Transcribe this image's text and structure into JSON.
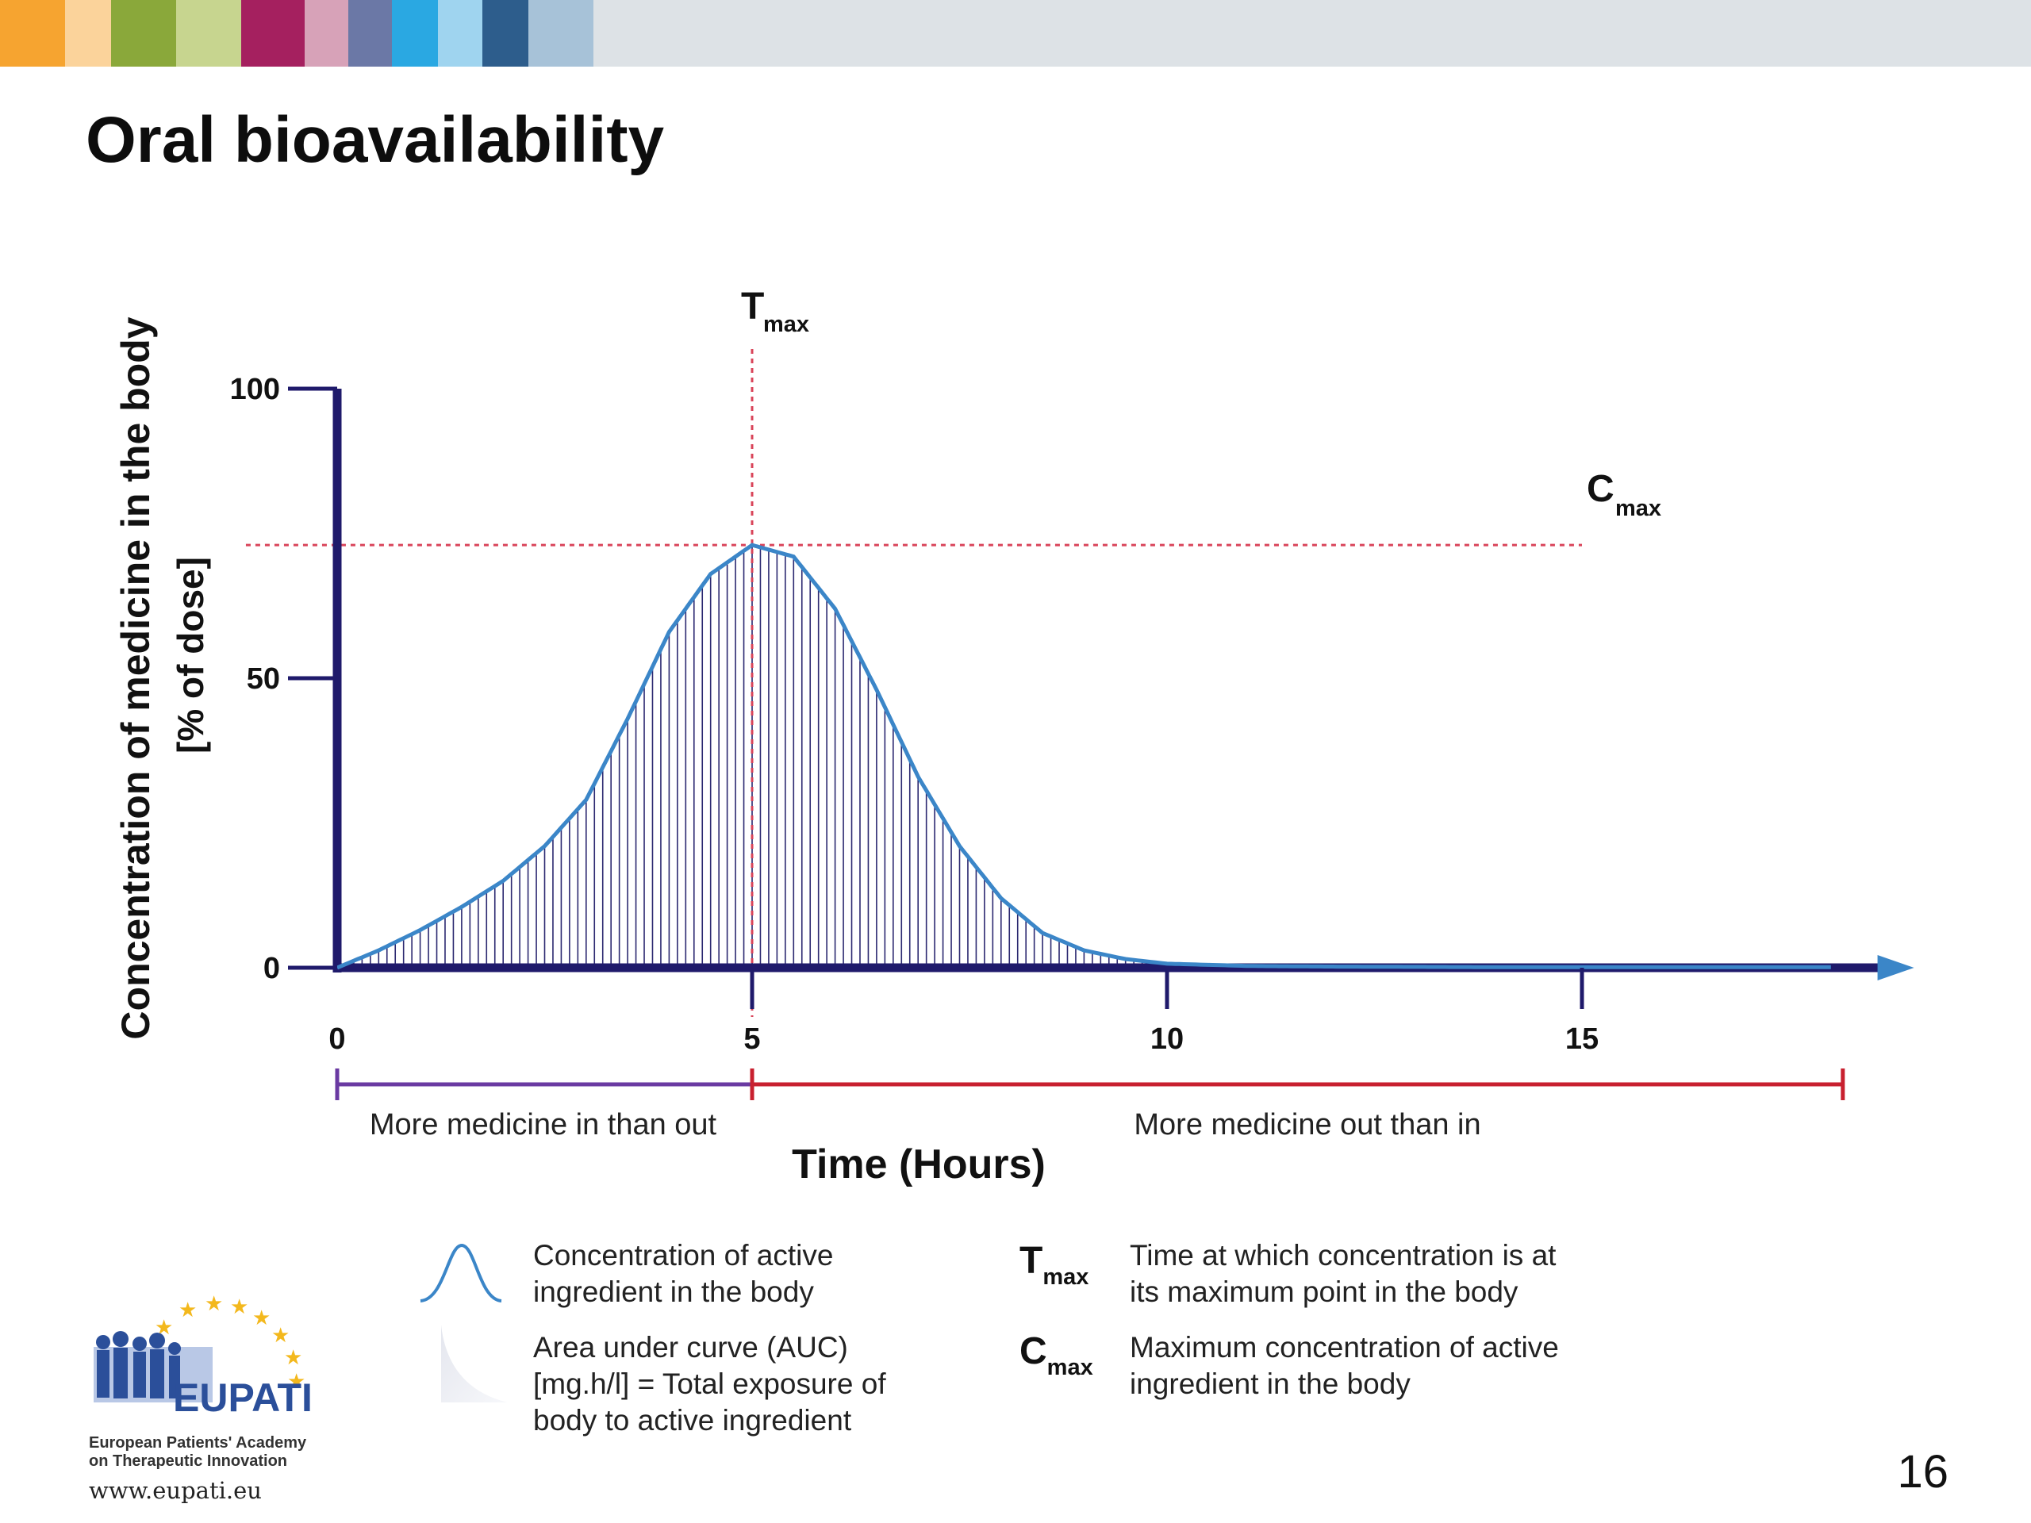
{
  "page_title": "Oral bioavailability",
  "page_number": "16",
  "brand_colors": [
    "#f6a430",
    "#fbd39b",
    "#8aa83a",
    "#c7d58f",
    "#a5205f",
    "#d7a2b8",
    "#6b78a6",
    "#2aa8e2",
    "#9fd4ef",
    "#2d5d8c",
    "#a7c2d8",
    "#dde2e6"
  ],
  "chart_data": {
    "type": "area",
    "title": "",
    "xlabel": "Time (Hours)",
    "ylabel_line1": "Concentration of medicine in the body",
    "ylabel_line2": "[% of dose]",
    "xlim": [
      0,
      18
    ],
    "ylim": [
      0,
      100
    ],
    "x_ticks": [
      0,
      5,
      10,
      15
    ],
    "x_tick_labels": [
      "0",
      "5",
      "10",
      "15"
    ],
    "y_ticks": [
      0,
      50,
      100
    ],
    "y_tick_labels": [
      "0",
      "50",
      "100"
    ],
    "series": [
      {
        "x": [
          0,
          0.5,
          1,
          1.5,
          2,
          2.5,
          3,
          3.5,
          4,
          4.5,
          5,
          5.5,
          6,
          6.5,
          7,
          7.5,
          8,
          8.5,
          9,
          9.5,
          10,
          11,
          12,
          14,
          16,
          18
        ],
        "y": [
          0,
          3,
          6.5,
          10.5,
          15,
          21,
          29,
          43,
          58,
          68,
          73,
          71,
          62,
          48,
          33,
          21,
          12,
          6,
          3,
          1.5,
          0.7,
          0.3,
          0.2,
          0.1,
          0.1,
          0.1
        ],
        "color": "#3b86c8"
      }
    ],
    "tmax": 5,
    "cmax": 73,
    "tmax_label": "T",
    "tmax_sub": "max",
    "cmax_label": "C",
    "cmax_sub": "max",
    "phase_in": {
      "label": "More medicine in than out",
      "from": 0,
      "to": 5,
      "color": "#6a3aa2"
    },
    "phase_out": {
      "label": "More medicine out than in",
      "from": 5,
      "to": 18,
      "color": "#c8202f"
    },
    "axis_color": "#1f1a6b",
    "ref_line_color": "#d9445a",
    "hatch_color": "#2b2870"
  },
  "legend": {
    "curve_text": [
      "Concentration of active",
      "ingredient in the body"
    ],
    "auc_text": [
      "Area under curve (AUC)",
      "[mg.h/l] = Total exposure of",
      "body to active ingredient"
    ],
    "tmax_symbol": "T",
    "tmax_sub": "max",
    "tmax_text": [
      "Time at which concentration is at",
      "its maximum point in the body"
    ],
    "cmax_symbol": "C",
    "cmax_sub": "max",
    "cmax_text": [
      "Maximum concentration of active",
      "ingredient in the body"
    ]
  },
  "logo": {
    "brand": "EUPATI",
    "org_line1": "European Patients' Academy",
    "org_line2": "on Therapeutic Innovation",
    "url": "www.eupati.eu"
  }
}
